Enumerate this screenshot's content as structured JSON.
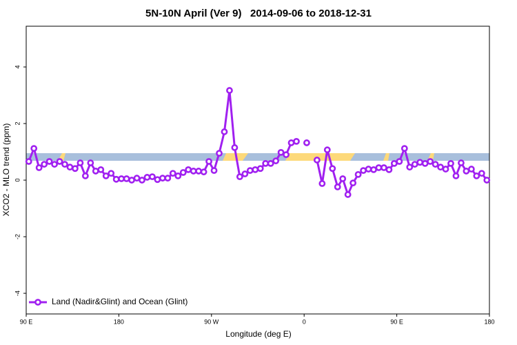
{
  "chart_data": {
    "type": "line",
    "title": "5N-10N April (Ver 9)   2014-09-06 to 2018-12-31",
    "x_label": "Longitude (deg E)",
    "y_label": "XCO2 - MLO trend (ppm)",
    "xlim": [
      90,
      540
    ],
    "xticks": [
      {
        "value": 90,
        "label": "90 E"
      },
      {
        "value": 180,
        "label": "180"
      },
      {
        "value": 270,
        "label": "90 W"
      },
      {
        "value": 360,
        "label": "0"
      },
      {
        "value": 450,
        "label": "90 E"
      },
      {
        "value": 540,
        "label": "180"
      }
    ],
    "ylim": [
      -4.73,
      5.44
    ],
    "yticks": [
      -4,
      -2,
      0,
      2,
      4
    ],
    "legend": "bottomleft",
    "x": [
      92.5,
      97.5,
      102.5,
      107.5,
      112.5,
      117.5,
      122.5,
      127.5,
      132.5,
      137.5,
      142.5,
      147.5,
      152.5,
      157.5,
      162.5,
      167.5,
      172.5,
      177.5,
      182.5,
      187.5,
      192.5,
      197.5,
      202.5,
      207.5,
      212.5,
      217.5,
      222.5,
      227.5,
      232.5,
      237.5,
      242.5,
      247.5,
      252.5,
      257.5,
      262.5,
      267.5,
      272.5,
      277.5,
      282.5,
      287.5,
      292.5,
      297.5,
      302.5,
      307.5,
      312.5,
      317.5,
      322.5,
      327.5,
      332.5,
      337.5,
      342.5,
      347.5,
      352.5,
      357.5,
      362.5,
      367.5,
      372.5,
      377.5,
      382.5,
      387.5,
      392.5,
      397.5,
      402.5,
      407.5,
      412.5,
      417.5,
      422.5,
      427.5,
      432.5,
      437.5,
      442.5,
      447.5,
      452.5,
      457.5,
      462.5,
      467.5,
      472.5,
      477.5,
      482.5,
      487.5,
      492.5,
      497.5,
      502.5,
      507.5,
      512.5,
      517.5,
      522.5,
      527.5,
      532.5,
      537.5
    ],
    "series": [
      {
        "name": "Land (Nadir&Glint) and Ocean (Glint)",
        "color": "#a020f0",
        "values": [
          0.66,
          1.12,
          0.44,
          0.56,
          0.66,
          0.56,
          0.66,
          0.56,
          0.46,
          0.41,
          0.61,
          0.15,
          0.61,
          0.32,
          0.37,
          0.15,
          0.24,
          0.03,
          0.05,
          0.05,
          0.0,
          0.07,
          0.0,
          0.1,
          0.12,
          0.02,
          0.07,
          0.07,
          0.24,
          0.15,
          0.27,
          0.37,
          0.32,
          0.32,
          0.29,
          0.66,
          0.34,
          0.95,
          1.71,
          3.17,
          1.15,
          0.12,
          0.22,
          0.34,
          0.37,
          0.41,
          0.59,
          0.59,
          0.68,
          0.98,
          0.9,
          1.32,
          1.37,
          null,
          1.32,
          null,
          0.71,
          -0.12,
          1.07,
          0.41,
          -0.24,
          0.05,
          -0.51,
          -0.1,
          0.2,
          0.34,
          0.39,
          0.37,
          0.44,
          0.44,
          0.37,
          0.59,
          0.66,
          1.12,
          0.46,
          0.56,
          0.63,
          0.59,
          0.66,
          0.56,
          0.46,
          0.39,
          0.59,
          0.15,
          0.61,
          0.32,
          0.39,
          0.15,
          0.24,
          0.0
        ]
      }
    ]
  }
}
